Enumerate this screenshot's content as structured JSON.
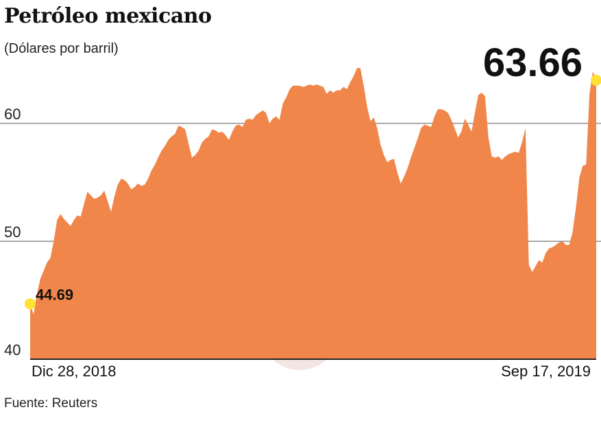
{
  "header": {
    "title": "Petróleo mexicano",
    "subtitle": "(Dólares por barril)"
  },
  "footer": {
    "source": "Fuente: Reuters"
  },
  "colors": {
    "area": "#f0864a",
    "marker": "#ffe033",
    "gridline": "#555555"
  },
  "chart_data": {
    "type": "area",
    "title": "Petróleo mexicano",
    "ylabel": "(Dólares por barril)",
    "xlabel": "",
    "ylim": [
      40,
      66
    ],
    "yticks": [
      40,
      50,
      60
    ],
    "ytick_labels": [
      "40",
      "50",
      "60"
    ],
    "x_start_label": "Dic 28, 2018",
    "x_end_label": "Sep 17, 2019",
    "grid": true,
    "start_value": 44.69,
    "end_value": 63.66,
    "start_label": "44.69",
    "end_label": "63.66",
    "values": [
      44.69,
      43.8,
      45.5,
      46.8,
      47.5,
      48.2,
      48.6,
      50.0,
      51.8,
      52.3,
      51.9,
      51.6,
      51.3,
      51.8,
      52.2,
      52.1,
      53.2,
      54.2,
      53.9,
      53.6,
      53.7,
      53.9,
      54.3,
      53.4,
      52.5,
      53.8,
      54.8,
      55.3,
      55.2,
      54.9,
      54.4,
      54.6,
      54.9,
      54.7,
      54.8,
      55.3,
      56.0,
      56.5,
      57.1,
      57.7,
      58.1,
      58.6,
      58.9,
      59.1,
      59.8,
      59.7,
      59.5,
      58.3,
      57.1,
      57.3,
      57.7,
      58.4,
      58.7,
      58.9,
      59.5,
      59.4,
      59.2,
      59.3,
      59.0,
      58.6,
      59.3,
      59.8,
      59.9,
      59.7,
      60.3,
      60.4,
      60.3,
      60.7,
      60.9,
      61.1,
      60.9,
      60.0,
      60.4,
      60.6,
      60.3,
      61.7,
      62.2,
      62.9,
      63.2,
      63.2,
      63.2,
      63.1,
      63.2,
      63.3,
      63.2,
      63.3,
      63.2,
      63.1,
      62.5,
      62.8,
      62.6,
      62.8,
      62.8,
      63.1,
      62.9,
      63.5,
      64.0,
      64.7,
      64.7,
      63.2,
      61.4,
      60.2,
      60.5,
      59.6,
      58.2,
      57.3,
      56.7,
      56.9,
      57.0,
      55.8,
      54.9,
      55.5,
      56.2,
      57.1,
      57.9,
      58.7,
      59.6,
      59.9,
      59.8,
      59.7,
      60.6,
      61.2,
      61.2,
      61.1,
      60.9,
      60.3,
      59.6,
      58.8,
      59.3,
      60.4,
      59.9,
      59.3,
      60.9,
      62.4,
      62.6,
      62.3,
      58.8,
      57.2,
      57.1,
      57.2,
      56.9,
      57.2,
      57.4,
      57.5,
      57.6,
      57.5,
      58.4,
      59.6,
      48.0,
      47.4,
      47.9,
      48.4,
      48.2,
      49.0,
      49.4,
      49.5,
      49.7,
      49.9,
      50.0,
      49.7,
      49.7,
      50.8,
      52.9,
      55.4,
      56.4,
      56.5,
      62.5,
      64.4,
      63.66
    ]
  }
}
